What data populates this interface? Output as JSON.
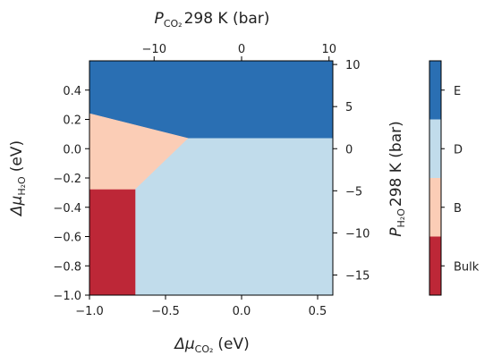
{
  "chart_data": {
    "type": "heatmap",
    "title": "",
    "x_axis": {
      "label_main": "Δμ",
      "label_sub": "CO₂",
      "label_unit": "(eV)",
      "range": [
        -1.0,
        0.6
      ],
      "ticks": [
        -1.0,
        -0.5,
        0.0,
        0.5
      ],
      "tick_labels": [
        "−1.0",
        "−0.5",
        "0.0",
        "0.5"
      ]
    },
    "y_axis": {
      "label_main": "Δμ",
      "label_sub": "H₂O",
      "label_unit": "(eV)",
      "range": [
        -1.0,
        0.6
      ],
      "ticks": [
        -1.0,
        -0.8,
        -0.6,
        -0.4,
        -0.2,
        0.0,
        0.2,
        0.4
      ],
      "tick_labels": [
        "−1.0",
        "−0.8",
        "−0.6",
        "−0.4",
        "−0.2",
        "0.0",
        "0.2",
        "0.4"
      ]
    },
    "top_axis": {
      "label_main": "P",
      "label_sub": "CO₂",
      "label_rest": "298 K (bar)",
      "ticks": [
        -10,
        0,
        10
      ],
      "tick_labels": [
        "−10",
        "0",
        "10"
      ]
    },
    "right_axis": {
      "label_main": "P",
      "label_sub": "H₂O",
      "label_rest": "298 K (bar)",
      "ticks": [
        10,
        5,
        0,
        -5,
        -10,
        -15
      ],
      "tick_labels": [
        "10",
        "5",
        "0",
        "−5",
        "−10",
        "−15"
      ]
    },
    "regions": [
      {
        "phase": "E",
        "color": "#2a6fb3",
        "polygon": [
          [
            -1.0,
            0.6
          ],
          [
            0.6,
            0.6
          ],
          [
            0.6,
            0.07
          ],
          [
            -0.35,
            0.07
          ],
          [
            -1.0,
            0.24
          ]
        ]
      },
      {
        "phase": "B",
        "color": "#fbcdb6",
        "polygon": [
          [
            -1.0,
            0.24
          ],
          [
            -0.35,
            0.07
          ],
          [
            -0.7,
            -0.28
          ],
          [
            -1.0,
            -0.28
          ]
        ]
      },
      {
        "phase": "D",
        "color": "#c1dceb",
        "polygon": [
          [
            -0.35,
            0.07
          ],
          [
            0.6,
            0.07
          ],
          [
            0.6,
            -1.0
          ],
          [
            -0.7,
            -1.0
          ],
          [
            -0.7,
            -0.28
          ]
        ]
      },
      {
        "phase": "Bulk",
        "color": "#bd2737",
        "polygon": [
          [
            -1.0,
            -0.28
          ],
          [
            -0.7,
            -0.28
          ],
          [
            -0.7,
            -1.0
          ],
          [
            -1.0,
            -1.0
          ]
        ]
      }
    ],
    "colorbar": [
      {
        "label": "Bulk",
        "color": "#bd2737"
      },
      {
        "label": "B",
        "color": "#fbcdb6"
      },
      {
        "label": "D",
        "color": "#c1dceb"
      },
      {
        "label": "E",
        "color": "#2a6fb3"
      }
    ],
    "grid": false
  }
}
